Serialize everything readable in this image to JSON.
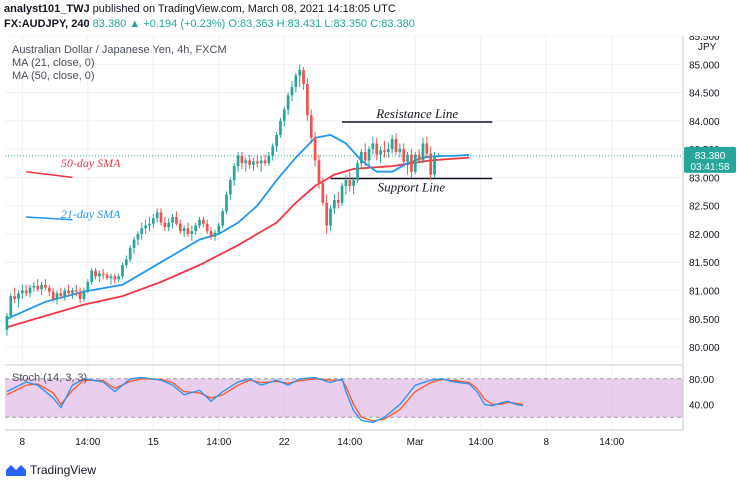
{
  "header": {
    "publisher": "analyst101_TWJ",
    "published_text": "published on TradingView.com, March 08, 2021 14:18:05 UTC",
    "symbol": "FX:AUDJPY, 240",
    "last": "83.380",
    "change": "+0.194 (+0.23%)",
    "ohlc": "O:83.363 H:83.431 L:83.350 C:83.380"
  },
  "chart_title": "Australian Dollar / Japanese Yen, 4h, FXCM",
  "indicators": [
    "MA (21, close, 0)",
    "MA (50, close, 0)"
  ],
  "currency": "JPY",
  "price_badge": {
    "price": "83.380",
    "countdown": "03:41:58"
  },
  "stoch_label": "Stoch (14, 3, 3)",
  "footer": {
    "brand": "TradingView"
  },
  "colors": {
    "up": "#26a69a",
    "down": "#ef5350",
    "ma21": "#2196f3",
    "ma50": "#f23645",
    "stoch_k": "#2196f3",
    "stoch_d": "#ff5722",
    "stoch_band": "#e1bee7"
  },
  "chart_data": {
    "type": "candlestick",
    "y_range": [
      79.7,
      85.5
    ],
    "y_ticks": [
      "85.500",
      "85.000",
      "84.500",
      "84.000",
      "83.500",
      "83.000",
      "82.500",
      "82.000",
      "81.500",
      "81.000",
      "80.500",
      "80.000"
    ],
    "x_ticks": [
      {
        "i": 4,
        "label": "8"
      },
      {
        "i": 21,
        "label": "14:00"
      },
      {
        "i": 38,
        "label": "15"
      },
      {
        "i": 55,
        "label": "14:00"
      },
      {
        "i": 72,
        "label": "22"
      },
      {
        "i": 89,
        "label": "14:00"
      },
      {
        "i": 106,
        "label": "Mar"
      },
      {
        "i": 123,
        "label": "14:00"
      },
      {
        "i": 140,
        "label": "8"
      },
      {
        "i": 157,
        "label": "14:00"
      }
    ],
    "candles": [
      [
        80.3,
        80.6,
        80.2,
        80.55
      ],
      [
        80.55,
        80.95,
        80.5,
        80.9
      ],
      [
        80.9,
        81.05,
        80.78,
        80.85
      ],
      [
        80.85,
        81.0,
        80.7,
        80.95
      ],
      [
        80.95,
        81.1,
        80.85,
        81.0
      ],
      [
        81.0,
        81.1,
        80.9,
        80.95
      ],
      [
        80.95,
        81.1,
        80.88,
        81.05
      ],
      [
        81.05,
        81.15,
        80.98,
        81.08
      ],
      [
        81.08,
        81.2,
        80.98,
        81.02
      ],
      [
        81.02,
        81.15,
        80.92,
        81.1
      ],
      [
        81.1,
        81.2,
        81.0,
        81.05
      ],
      [
        81.05,
        81.1,
        80.9,
        80.98
      ],
      [
        80.98,
        81.05,
        80.8,
        80.85
      ],
      [
        80.85,
        81.0,
        80.75,
        80.95
      ],
      [
        80.95,
        81.05,
        80.85,
        80.9
      ],
      [
        80.9,
        81.05,
        80.82,
        81.0
      ],
      [
        81.0,
        81.1,
        80.9,
        80.95
      ],
      [
        80.95,
        81.05,
        80.85,
        81.0
      ],
      [
        81.0,
        81.1,
        80.9,
        80.98
      ],
      [
        80.98,
        81.05,
        80.78,
        80.85
      ],
      [
        80.85,
        81.05,
        80.8,
        81.0
      ],
      [
        81.0,
        81.2,
        80.95,
        81.15
      ],
      [
        81.15,
        81.4,
        81.1,
        81.35
      ],
      [
        81.35,
        81.4,
        81.2,
        81.25
      ],
      [
        81.25,
        81.35,
        81.15,
        81.3
      ],
      [
        81.3,
        81.38,
        81.2,
        81.28
      ],
      [
        81.28,
        81.32,
        81.18,
        81.22
      ],
      [
        81.22,
        81.3,
        81.1,
        81.25
      ],
      [
        81.25,
        81.3,
        81.12,
        81.2
      ],
      [
        81.2,
        81.3,
        81.15,
        81.25
      ],
      [
        81.25,
        81.5,
        81.2,
        81.45
      ],
      [
        81.45,
        81.62,
        81.4,
        81.55
      ],
      [
        81.55,
        81.8,
        81.5,
        81.75
      ],
      [
        81.75,
        81.95,
        81.65,
        81.9
      ],
      [
        81.9,
        82.05,
        81.8,
        82.0
      ],
      [
        82.0,
        82.2,
        81.9,
        82.1
      ],
      [
        82.1,
        82.25,
        82.0,
        82.15
      ],
      [
        82.15,
        82.3,
        82.05,
        82.18
      ],
      [
        82.18,
        82.35,
        82.1,
        82.28
      ],
      [
        82.28,
        82.45,
        82.2,
        82.38
      ],
      [
        82.38,
        82.45,
        82.15,
        82.2
      ],
      [
        82.2,
        82.3,
        82.05,
        82.12
      ],
      [
        82.12,
        82.28,
        82.05,
        82.2
      ],
      [
        82.2,
        82.35,
        82.1,
        82.3
      ],
      [
        82.3,
        82.4,
        82.15,
        82.18
      ],
      [
        82.18,
        82.25,
        82.0,
        82.05
      ],
      [
        82.05,
        82.15,
        81.95,
        82.1
      ],
      [
        82.1,
        82.2,
        81.95,
        82.0
      ],
      [
        82.0,
        82.15,
        81.88,
        82.05
      ],
      [
        82.05,
        82.2,
        81.98,
        82.15
      ],
      [
        82.15,
        82.3,
        82.1,
        82.25
      ],
      [
        82.25,
        82.3,
        82.12,
        82.18
      ],
      [
        82.18,
        82.25,
        82.0,
        82.05
      ],
      [
        82.05,
        82.12,
        81.9,
        81.95
      ],
      [
        81.95,
        82.08,
        81.88,
        82.02
      ],
      [
        82.02,
        82.2,
        81.98,
        82.15
      ],
      [
        82.15,
        82.45,
        82.1,
        82.4
      ],
      [
        82.4,
        82.75,
        82.35,
        82.7
      ],
      [
        82.7,
        83.0,
        82.6,
        82.95
      ],
      [
        82.95,
        83.25,
        82.85,
        83.2
      ],
      [
        83.2,
        83.45,
        83.1,
        83.38
      ],
      [
        83.38,
        83.45,
        83.15,
        83.25
      ],
      [
        83.25,
        83.35,
        83.1,
        83.3
      ],
      [
        83.3,
        83.4,
        83.15,
        83.22
      ],
      [
        83.22,
        83.35,
        83.12,
        83.28
      ],
      [
        83.28,
        83.4,
        83.18,
        83.25
      ],
      [
        83.25,
        83.38,
        83.1,
        83.3
      ],
      [
        83.3,
        83.4,
        83.2,
        83.25
      ],
      [
        83.25,
        83.45,
        83.2,
        83.38
      ],
      [
        83.38,
        83.6,
        83.3,
        83.55
      ],
      [
        83.55,
        83.8,
        83.45,
        83.75
      ],
      [
        83.75,
        84.05,
        83.7,
        84.0
      ],
      [
        84.0,
        84.25,
        83.9,
        84.2
      ],
      [
        84.2,
        84.5,
        84.1,
        84.45
      ],
      [
        84.45,
        84.7,
        84.35,
        84.6
      ],
      [
        84.6,
        84.85,
        84.5,
        84.8
      ],
      [
        84.8,
        85.0,
        84.6,
        84.9
      ],
      [
        84.9,
        84.95,
        84.55,
        84.65
      ],
      [
        84.65,
        84.75,
        84.0,
        84.1
      ],
      [
        84.1,
        84.2,
        83.6,
        83.7
      ],
      [
        83.7,
        83.8,
        83.2,
        83.3
      ],
      [
        83.3,
        83.4,
        82.8,
        82.9
      ],
      [
        82.9,
        83.0,
        82.5,
        82.55
      ],
      [
        82.55,
        82.7,
        82.0,
        82.15
      ],
      [
        82.15,
        82.5,
        82.05,
        82.45
      ],
      [
        82.45,
        82.7,
        82.35,
        82.6
      ],
      [
        82.6,
        82.75,
        82.45,
        82.55
      ],
      [
        82.55,
        82.9,
        82.5,
        82.85
      ],
      [
        82.85,
        83.05,
        82.7,
        82.95
      ],
      [
        82.95,
        83.1,
        82.75,
        82.85
      ],
      [
        82.85,
        83.0,
        82.7,
        82.95
      ],
      [
        82.95,
        83.3,
        82.9,
        83.25
      ],
      [
        83.25,
        83.5,
        83.15,
        83.45
      ],
      [
        83.45,
        83.6,
        83.2,
        83.3
      ],
      [
        83.3,
        83.55,
        83.2,
        83.5
      ],
      [
        83.5,
        83.72,
        83.4,
        83.6
      ],
      [
        83.6,
        83.7,
        83.3,
        83.4
      ],
      [
        83.4,
        83.55,
        83.25,
        83.48
      ],
      [
        83.48,
        83.65,
        83.35,
        83.45
      ],
      [
        83.45,
        83.62,
        83.35,
        83.5
      ],
      [
        83.5,
        83.75,
        83.42,
        83.68
      ],
      [
        83.68,
        83.78,
        83.4,
        83.45
      ],
      [
        83.45,
        83.6,
        83.35,
        83.5
      ],
      [
        83.5,
        83.6,
        83.2,
        83.28
      ],
      [
        83.28,
        83.45,
        83.05,
        83.4
      ],
      [
        83.4,
        83.5,
        83.0,
        83.1
      ],
      [
        83.1,
        83.45,
        83.05,
        83.4
      ],
      [
        83.4,
        83.5,
        83.25,
        83.3
      ],
      [
        83.3,
        83.7,
        83.25,
        83.6
      ],
      [
        83.6,
        83.72,
        83.35,
        83.42
      ],
      [
        83.42,
        83.55,
        82.95,
        83.05
      ],
      [
        83.05,
        83.45,
        83.0,
        83.36
      ],
      [
        83.36,
        83.43,
        83.35,
        83.38
      ]
    ],
    "ma21_line": {
      "name": "MA (21, close, 0)",
      "points": [
        [
          0,
          80.5
        ],
        [
          10,
          80.8
        ],
        [
          20,
          80.98
        ],
        [
          30,
          81.1
        ],
        [
          40,
          81.5
        ],
        [
          50,
          81.9
        ],
        [
          55,
          82.0
        ],
        [
          60,
          82.2
        ],
        [
          65,
          82.5
        ],
        [
          70,
          82.95
        ],
        [
          75,
          83.35
        ],
        [
          80,
          83.7
        ],
        [
          84,
          83.75
        ],
        [
          88,
          83.6
        ],
        [
          92,
          83.3
        ],
        [
          96,
          83.1
        ],
        [
          100,
          83.1
        ],
        [
          104,
          83.25
        ],
        [
          108,
          83.35
        ],
        [
          112,
          83.38
        ],
        [
          116,
          83.38
        ],
        [
          120,
          83.4
        ]
      ]
    },
    "ma50_line": {
      "name": "MA (50, close, 0)",
      "points": [
        [
          0,
          80.35
        ],
        [
          10,
          80.55
        ],
        [
          20,
          80.75
        ],
        [
          30,
          80.9
        ],
        [
          40,
          81.15
        ],
        [
          50,
          81.45
        ],
        [
          60,
          81.8
        ],
        [
          70,
          82.2
        ],
        [
          75,
          82.55
        ],
        [
          80,
          82.85
        ],
        [
          85,
          83.05
        ],
        [
          90,
          83.15
        ],
        [
          100,
          83.2
        ],
        [
          110,
          83.3
        ],
        [
          120,
          83.35
        ]
      ]
    },
    "annotations": [
      {
        "text": "Resistance Line",
        "price": 83.98,
        "i0": 87,
        "i1": 126,
        "color": "#131722"
      },
      {
        "text": "Support Line",
        "price": 82.98,
        "i0": 84,
        "i1": 126,
        "color": "#131722"
      },
      {
        "text": "50-day SMA",
        "price": 83.25,
        "color": "#f23645",
        "line": [
          [
            -25,
            83.1
          ],
          [
            -13,
            83.0
          ]
        ]
      },
      {
        "text": "21-day SMA",
        "price": 82.35,
        "color": "#2196f3",
        "line": [
          [
            -25,
            82.3
          ],
          [
            -13,
            82.25
          ]
        ]
      }
    ],
    "stoch": {
      "y_range": [
        0,
        100
      ],
      "y_ticks": [
        "80.00",
        "40.00"
      ],
      "band": [
        20,
        80
      ],
      "k": [
        [
          0,
          60
        ],
        [
          5,
          75
        ],
        [
          8,
          70
        ],
        [
          12,
          50
        ],
        [
          14,
          35
        ],
        [
          17,
          70
        ],
        [
          20,
          80
        ],
        [
          25,
          75
        ],
        [
          28,
          60
        ],
        [
          32,
          80
        ],
        [
          35,
          82
        ],
        [
          40,
          78
        ],
        [
          43,
          70
        ],
        [
          46,
          55
        ],
        [
          50,
          62
        ],
        [
          53,
          45
        ],
        [
          56,
          60
        ],
        [
          60,
          75
        ],
        [
          63,
          80
        ],
        [
          66,
          70
        ],
        [
          70,
          78
        ],
        [
          73,
          70
        ],
        [
          76,
          80
        ],
        [
          80,
          82
        ],
        [
          84,
          74
        ],
        [
          87,
          80
        ],
        [
          88,
          60
        ],
        [
          90,
          30
        ],
        [
          92,
          15
        ],
        [
          95,
          12
        ],
        [
          98,
          20
        ],
        [
          102,
          40
        ],
        [
          106,
          70
        ],
        [
          110,
          78
        ],
        [
          113,
          80
        ],
        [
          116,
          75
        ],
        [
          120,
          72
        ],
        [
          122,
          60
        ],
        [
          124,
          40
        ],
        [
          126,
          38
        ],
        [
          128,
          42
        ],
        [
          130,
          45
        ],
        [
          132,
          40
        ],
        [
          134,
          38
        ]
      ],
      "d": [
        [
          0,
          55
        ],
        [
          5,
          70
        ],
        [
          8,
          72
        ],
        [
          12,
          58
        ],
        [
          14,
          40
        ],
        [
          17,
          62
        ],
        [
          20,
          78
        ],
        [
          25,
          77
        ],
        [
          28,
          65
        ],
        [
          32,
          76
        ],
        [
          35,
          80
        ],
        [
          40,
          79
        ],
        [
          43,
          74
        ],
        [
          46,
          60
        ],
        [
          50,
          58
        ],
        [
          53,
          50
        ],
        [
          56,
          55
        ],
        [
          60,
          70
        ],
        [
          63,
          78
        ],
        [
          66,
          74
        ],
        [
          70,
          76
        ],
        [
          73,
          73
        ],
        [
          76,
          77
        ],
        [
          80,
          80
        ],
        [
          84,
          78
        ],
        [
          87,
          78
        ],
        [
          88,
          68
        ],
        [
          90,
          40
        ],
        [
          92,
          20
        ],
        [
          95,
          14
        ],
        [
          98,
          17
        ],
        [
          102,
          32
        ],
        [
          106,
          60
        ],
        [
          110,
          74
        ],
        [
          113,
          79
        ],
        [
          116,
          77
        ],
        [
          120,
          74
        ],
        [
          122,
          65
        ],
        [
          124,
          48
        ],
        [
          126,
          40
        ],
        [
          128,
          40
        ],
        [
          130,
          43
        ],
        [
          132,
          42
        ],
        [
          134,
          40
        ]
      ]
    }
  }
}
